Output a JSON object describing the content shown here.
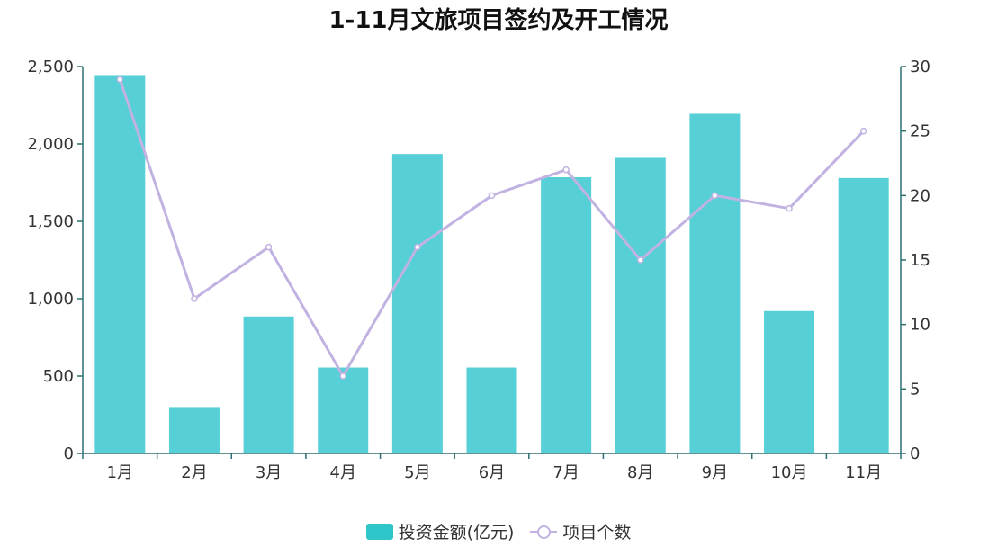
{
  "colors": {
    "bar": "#56D0D6",
    "bar_legend": "#30C5CB",
    "line": "#C1B2E1",
    "axis": "#2F6F73",
    "tick_text": "#333333"
  },
  "chart_data": {
    "type": "bar",
    "title": "1-11月文旅项目签约及开工情况",
    "categories": [
      "1月",
      "2月",
      "3月",
      "4月",
      "5月",
      "6月",
      "7月",
      "8月",
      "9月",
      "10月",
      "11月"
    ],
    "series": [
      {
        "name": "投资金额(亿元)",
        "type": "bar",
        "axis": "left",
        "values": [
          2445,
          300,
          885,
          555,
          1935,
          555,
          1785,
          1910,
          2195,
          920,
          1780
        ]
      },
      {
        "name": "项目个数",
        "type": "line",
        "axis": "right",
        "values": [
          29,
          12,
          16,
          6,
          16,
          20,
          22,
          15,
          20,
          19,
          25
        ]
      }
    ],
    "y_left": {
      "min": 0,
      "max": 2500,
      "ticks": [
        0,
        500,
        1000,
        1500,
        2000,
        2500
      ],
      "tick_labels": [
        "0",
        "500",
        "1,000",
        "1,500",
        "2,000",
        "2,500"
      ]
    },
    "y_right": {
      "min": 0,
      "max": 30,
      "ticks": [
        0,
        5,
        10,
        15,
        20,
        25,
        30
      ],
      "tick_labels": [
        "0",
        "5",
        "10",
        "15",
        "20",
        "25",
        "30"
      ]
    },
    "grid": false,
    "legend_position": "bottom"
  }
}
